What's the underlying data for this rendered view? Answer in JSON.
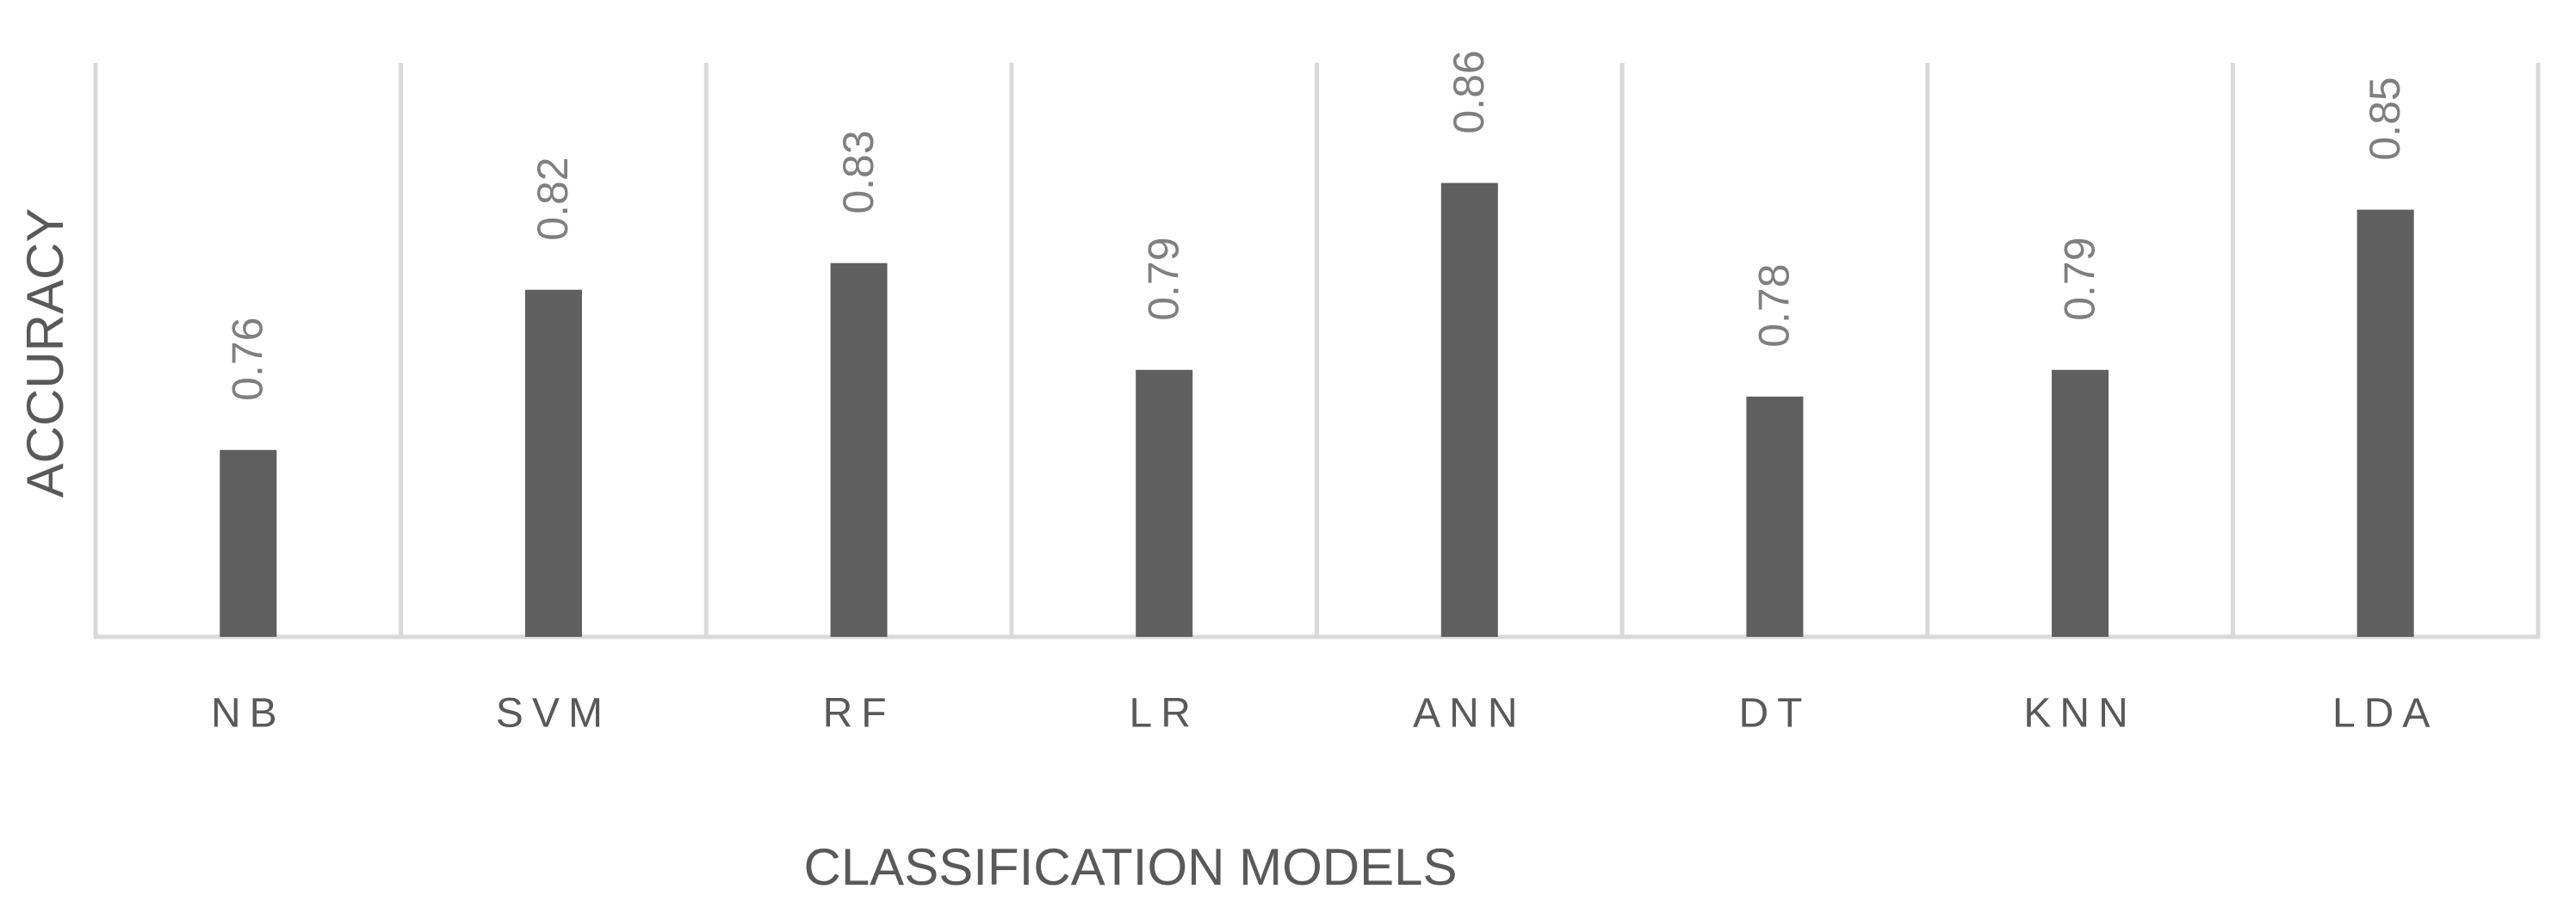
{
  "chart_data": {
    "type": "bar",
    "x_label": "CLASSIFICATION MODELS",
    "y_label": "ACCURACY",
    "categories": [
      "NB",
      "SVM",
      "RF",
      "LR",
      "ANN",
      "DT",
      "KNN",
      "LDA"
    ],
    "values": [
      0.76,
      0.82,
      0.83,
      0.79,
      0.86,
      0.78,
      0.79,
      0.85
    ],
    "color": "#5f5f5f",
    "ylim": [
      0.69,
      0.905
    ]
  }
}
